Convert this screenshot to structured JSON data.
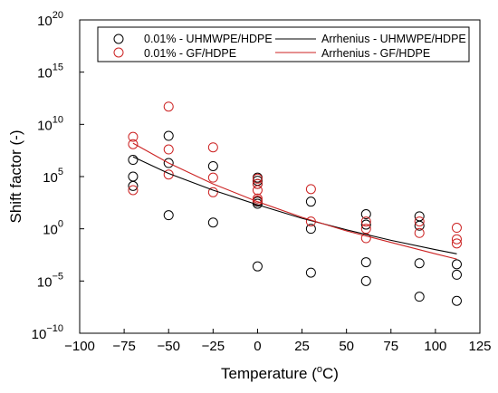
{
  "chart_data": {
    "type": "scatter",
    "xlabel_main": "Temperature (",
    "xlabel_sup": "o",
    "xlabel_end": "C)",
    "ylabel": "Shift factor (-)",
    "xlim": [
      -100,
      125
    ],
    "ylim_log10": [
      -10,
      20
    ],
    "y_scale": "log",
    "x_ticks": [
      -100,
      -75,
      -50,
      -25,
      0,
      25,
      50,
      75,
      100,
      125
    ],
    "x_tick_labels": [
      "−100",
      "−75",
      "−50",
      "−25",
      "0",
      "25",
      "50",
      "75",
      "100",
      "125"
    ],
    "y_ticks": [
      {
        "base": "10",
        "exp": "20",
        "log": 20
      },
      {
        "base": "10",
        "exp": "15",
        "log": 15
      },
      {
        "base": "10",
        "exp": "10",
        "log": 10
      },
      {
        "base": "10",
        "exp": "5",
        "log": 5
      },
      {
        "base": "10",
        "exp": "0",
        "log": 0
      },
      {
        "base": "10",
        "exp": "−5",
        "log": -5
      },
      {
        "base": "10",
        "exp": "−10",
        "log": -10
      }
    ],
    "grid": false,
    "legend_position": "top",
    "legend": [
      {
        "label": "0.01% - UHMWPE/HDPE",
        "marker": "circle",
        "color": "#000000"
      },
      {
        "label": "0.01% - GF/HDPE",
        "marker": "circle",
        "color": "#cc2222"
      },
      {
        "label": "Arrhenius - UHMWPE/HDPE",
        "marker": "line",
        "color": "#000000"
      },
      {
        "label": "Arrhenius - GF/HDPE",
        "marker": "line",
        "color": "#cc2222"
      }
    ],
    "series": [
      {
        "name": "0.01% - UHMWPE/HDPE",
        "kind": "scatter",
        "color": "#000000",
        "points_log10": [
          [
            -70,
            6.6
          ],
          [
            -70,
            5.0
          ],
          [
            -70,
            4.1
          ],
          [
            -50,
            8.9
          ],
          [
            -50,
            6.3
          ],
          [
            -50,
            1.3
          ],
          [
            -25,
            6.0
          ],
          [
            -25,
            0.6
          ],
          [
            0,
            4.9
          ],
          [
            0,
            4.6
          ],
          [
            0,
            4.3
          ],
          [
            0,
            2.6
          ],
          [
            0,
            2.4
          ],
          [
            0,
            -3.6
          ],
          [
            30,
            2.6
          ],
          [
            30,
            0.0
          ],
          [
            30,
            -4.2
          ],
          [
            61,
            1.4
          ],
          [
            61,
            0.4
          ],
          [
            61,
            -3.2
          ],
          [
            61,
            -5.0
          ],
          [
            91,
            1.2
          ],
          [
            91,
            0.3
          ],
          [
            91,
            -3.3
          ],
          [
            91,
            -6.5
          ],
          [
            112,
            -3.4
          ],
          [
            112,
            -4.4
          ],
          [
            112,
            -6.9
          ]
        ]
      },
      {
        "name": "0.01% - GF/HDPE",
        "kind": "scatter",
        "color": "#cc2222",
        "points_log10": [
          [
            -70,
            8.8
          ],
          [
            -70,
            8.1
          ],
          [
            -70,
            3.7
          ],
          [
            -50,
            11.7
          ],
          [
            -50,
            7.6
          ],
          [
            -50,
            5.2
          ],
          [
            -25,
            7.8
          ],
          [
            -25,
            4.9
          ],
          [
            -25,
            3.5
          ],
          [
            0,
            4.8
          ],
          [
            0,
            4.3
          ],
          [
            0,
            3.7
          ],
          [
            0,
            2.9
          ],
          [
            0,
            2.7
          ],
          [
            30,
            3.8
          ],
          [
            30,
            0.7
          ],
          [
            61,
            0.7
          ],
          [
            61,
            0.0
          ],
          [
            61,
            -0.9
          ],
          [
            91,
            0.7
          ],
          [
            91,
            -0.4
          ],
          [
            112,
            0.1
          ],
          [
            112,
            -1.0
          ],
          [
            112,
            -1.4
          ]
        ]
      },
      {
        "name": "Arrhenius - UHMWPE/HDPE",
        "kind": "line",
        "color": "#000000",
        "points_log10": [
          [
            -70,
            6.9
          ],
          [
            -50,
            5.3
          ],
          [
            -25,
            3.7
          ],
          [
            0,
            2.3
          ],
          [
            25,
            1.0
          ],
          [
            50,
            -0.1
          ],
          [
            75,
            -1.1
          ],
          [
            100,
            -2.0
          ],
          [
            112,
            -2.4
          ]
        ]
      },
      {
        "name": "Arrhenius - GF/HDPE",
        "kind": "line",
        "color": "#cc2222",
        "points_log10": [
          [
            -70,
            8.2
          ],
          [
            -50,
            6.3
          ],
          [
            -25,
            4.3
          ],
          [
            0,
            2.6
          ],
          [
            25,
            1.1
          ],
          [
            50,
            -0.2
          ],
          [
            75,
            -1.3
          ],
          [
            100,
            -2.4
          ],
          [
            112,
            -2.9
          ]
        ]
      }
    ]
  }
}
